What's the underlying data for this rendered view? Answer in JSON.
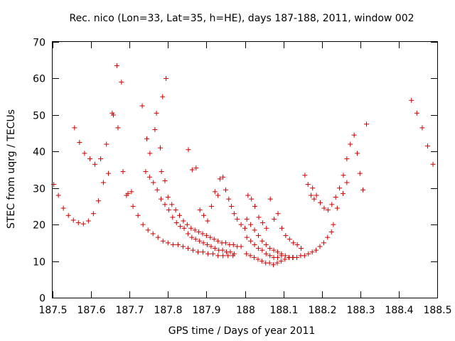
{
  "chart_data": {
    "type": "scatter",
    "title": "Rec. nico (Lon=33, Lat=35, h=HE), days 187-188, 2011, window 002",
    "xlabel": "GPS time / Days of year 2011",
    "ylabel": "STEC from uqrg / TECUs",
    "xlim": [
      187.5,
      188.5
    ],
    "ylim": [
      0,
      70
    ],
    "xticks": [
      "187.5",
      "187.6",
      "187.7",
      "187.8",
      "187.9",
      "188",
      "188.1",
      "188.2",
      "188.3",
      "188.4",
      "188.5"
    ],
    "yticks": [
      "0",
      "10",
      "20",
      "30",
      "40",
      "50",
      "60",
      "70"
    ],
    "grid": false,
    "marker": "+",
    "color": "#cc0000",
    "points": [
      [
        187.503,
        31.0
      ],
      [
        187.515,
        28.0
      ],
      [
        187.528,
        24.5
      ],
      [
        187.541,
        22.5
      ],
      [
        187.554,
        21.2
      ],
      [
        187.567,
        20.5
      ],
      [
        187.58,
        20.2
      ],
      [
        187.593,
        21.0
      ],
      [
        187.606,
        23.0
      ],
      [
        187.619,
        26.5
      ],
      [
        187.632,
        31.5
      ],
      [
        187.645,
        34.0
      ],
      [
        187.658,
        50.0
      ],
      [
        187.67,
        46.5
      ],
      [
        187.683,
        34.5
      ],
      [
        187.696,
        28.5
      ],
      [
        187.709,
        25.0
      ],
      [
        187.722,
        22.5
      ],
      [
        187.735,
        20.0
      ],
      [
        187.748,
        18.5
      ],
      [
        187.761,
        17.5
      ],
      [
        187.774,
        16.5
      ],
      [
        187.787,
        15.5
      ],
      [
        187.8,
        15.0
      ],
      [
        187.813,
        14.5
      ],
      [
        187.826,
        14.5
      ],
      [
        187.839,
        14.0
      ],
      [
        187.852,
        13.5
      ],
      [
        187.865,
        13.0
      ],
      [
        187.878,
        12.5
      ],
      [
        187.891,
        12.5
      ],
      [
        187.904,
        12.0
      ],
      [
        187.917,
        12.0
      ],
      [
        187.93,
        11.5
      ],
      [
        187.943,
        11.5
      ],
      [
        187.956,
        11.5
      ],
      [
        187.969,
        11.5
      ],
      [
        187.557,
        46.5
      ],
      [
        187.57,
        42.5
      ],
      [
        187.583,
        39.5
      ],
      [
        187.597,
        38.0
      ],
      [
        187.61,
        36.5
      ],
      [
        187.625,
        38.0
      ],
      [
        187.64,
        42.0
      ],
      [
        187.655,
        50.5
      ],
      [
        187.667,
        63.5
      ],
      [
        187.679,
        59.0
      ],
      [
        187.692,
        28.0
      ],
      [
        187.705,
        29.0
      ],
      [
        187.733,
        52.5
      ],
      [
        187.745,
        43.5
      ],
      [
        187.753,
        39.5
      ],
      [
        187.766,
        46.0
      ],
      [
        187.77,
        50.5
      ],
      [
        187.78,
        41.0
      ],
      [
        187.786,
        55.0
      ],
      [
        187.795,
        60.0
      ],
      [
        187.783,
        34.5
      ],
      [
        187.792,
        32.0
      ],
      [
        187.8,
        27.5
      ],
      [
        187.81,
        25.5
      ],
      [
        187.82,
        24.0
      ],
      [
        187.83,
        22.5
      ],
      [
        187.84,
        21.0
      ],
      [
        187.85,
        20.0
      ],
      [
        187.86,
        19.0
      ],
      [
        187.87,
        18.5
      ],
      [
        187.88,
        18.0
      ],
      [
        187.89,
        17.5
      ],
      [
        187.9,
        17.0
      ],
      [
        187.91,
        16.5
      ],
      [
        187.92,
        16.0
      ],
      [
        187.93,
        15.5
      ],
      [
        187.94,
        15.0
      ],
      [
        187.95,
        15.0
      ],
      [
        187.96,
        14.5
      ],
      [
        187.97,
        14.5
      ],
      [
        187.98,
        14.0
      ],
      [
        187.99,
        14.0
      ],
      [
        187.742,
        34.5
      ],
      [
        187.752,
        33.0
      ],
      [
        187.762,
        31.5
      ],
      [
        187.772,
        29.5
      ],
      [
        187.782,
        27.0
      ],
      [
        187.792,
        25.5
      ],
      [
        187.802,
        24.0
      ],
      [
        187.812,
        22.0
      ],
      [
        187.822,
        20.5
      ],
      [
        187.832,
        19.5
      ],
      [
        187.842,
        19.0
      ],
      [
        187.852,
        17.5
      ],
      [
        187.862,
        16.5
      ],
      [
        187.872,
        16.0
      ],
      [
        187.882,
        15.5
      ],
      [
        187.892,
        15.0
      ],
      [
        187.902,
        14.5
      ],
      [
        187.912,
        14.0
      ],
      [
        187.922,
        13.5
      ],
      [
        187.932,
        13.0
      ],
      [
        187.942,
        13.0
      ],
      [
        187.952,
        12.5
      ],
      [
        187.962,
        12.5
      ],
      [
        187.972,
        12.0
      ],
      [
        187.853,
        40.5
      ],
      [
        187.863,
        35.0
      ],
      [
        187.873,
        35.5
      ],
      [
        187.883,
        24.0
      ],
      [
        187.893,
        22.5
      ],
      [
        187.903,
        21.0
      ],
      [
        187.913,
        25.0
      ],
      [
        187.922,
        29.0
      ],
      [
        187.93,
        28.0
      ],
      [
        187.935,
        32.5
      ],
      [
        187.943,
        33.0
      ],
      [
        187.95,
        29.5
      ],
      [
        187.958,
        27.0
      ],
      [
        187.965,
        25.0
      ],
      [
        187.972,
        23.0
      ],
      [
        187.98,
        21.5
      ],
      [
        187.99,
        20.0
      ],
      [
        188.0,
        19.0
      ],
      [
        188.008,
        28.0
      ],
      [
        188.017,
        27.0
      ],
      [
        188.026,
        25.0
      ],
      [
        188.036,
        22.0
      ],
      [
        188.046,
        20.5
      ],
      [
        188.056,
        19.0
      ],
      [
        188.066,
        27.0
      ],
      [
        188.076,
        21.5
      ],
      [
        188.086,
        23.0
      ],
      [
        188.096,
        19.0
      ],
      [
        188.106,
        17.0
      ],
      [
        188.116,
        16.0
      ],
      [
        188.126,
        15.0
      ],
      [
        188.136,
        14.5
      ],
      [
        188.146,
        13.5
      ],
      [
        188.156,
        33.5
      ],
      [
        188.164,
        31.0
      ],
      [
        188.172,
        28.0
      ],
      [
        188.18,
        27.0
      ],
      [
        188.005,
        21.5
      ],
      [
        188.015,
        20.0
      ],
      [
        188.025,
        18.5
      ],
      [
        188.035,
        17.0
      ],
      [
        188.045,
        15.5
      ],
      [
        188.055,
        14.5
      ],
      [
        188.065,
        13.5
      ],
      [
        188.075,
        13.0
      ],
      [
        188.085,
        12.5
      ],
      [
        188.095,
        12.0
      ],
      [
        188.105,
        11.5
      ],
      [
        188.115,
        11.0
      ],
      [
        188.125,
        11.0
      ],
      [
        188.135,
        11.0
      ],
      [
        188.145,
        11.5
      ],
      [
        188.155,
        11.5
      ],
      [
        188.165,
        12.0
      ],
      [
        188.175,
        12.5
      ],
      [
        188.185,
        13.0
      ],
      [
        188.195,
        14.0
      ],
      [
        188.205,
        15.0
      ],
      [
        188.215,
        16.5
      ],
      [
        188.225,
        18.0
      ],
      [
        188.004,
        12.0
      ],
      [
        188.014,
        11.5
      ],
      [
        188.024,
        11.0
      ],
      [
        188.034,
        10.5
      ],
      [
        188.044,
        10.0
      ],
      [
        188.054,
        9.5
      ],
      [
        188.064,
        9.5
      ],
      [
        188.074,
        9.0
      ],
      [
        188.084,
        9.5
      ],
      [
        188.094,
        10.0
      ],
      [
        188.104,
        10.5
      ],
      [
        188.114,
        11.0
      ],
      [
        188.124,
        11.0
      ],
      [
        188.005,
        16.5
      ],
      [
        188.015,
        15.5
      ],
      [
        188.025,
        14.5
      ],
      [
        188.035,
        13.5
      ],
      [
        188.045,
        13.0
      ],
      [
        188.055,
        12.0
      ],
      [
        188.065,
        11.5
      ],
      [
        188.075,
        11.0
      ],
      [
        188.085,
        11.0
      ],
      [
        188.095,
        11.5
      ],
      [
        188.176,
        30.0
      ],
      [
        188.186,
        28.0
      ],
      [
        188.196,
        26.0
      ],
      [
        188.206,
        24.5
      ],
      [
        188.216,
        24.0
      ],
      [
        188.226,
        25.5
      ],
      [
        188.236,
        27.5
      ],
      [
        188.246,
        30.0
      ],
      [
        188.256,
        33.5
      ],
      [
        188.265,
        38.0
      ],
      [
        188.274,
        42.0
      ],
      [
        188.284,
        44.5
      ],
      [
        188.292,
        39.5
      ],
      [
        188.299,
        34.0
      ],
      [
        188.307,
        29.5
      ],
      [
        188.316,
        47.5
      ],
      [
        188.23,
        20.0
      ],
      [
        188.24,
        24.5
      ],
      [
        188.255,
        28.5
      ],
      [
        188.265,
        31.5
      ],
      [
        188.433,
        54.0
      ],
      [
        188.447,
        50.5
      ],
      [
        188.461,
        46.5
      ],
      [
        188.475,
        41.5
      ],
      [
        188.489,
        36.5
      ]
    ]
  }
}
